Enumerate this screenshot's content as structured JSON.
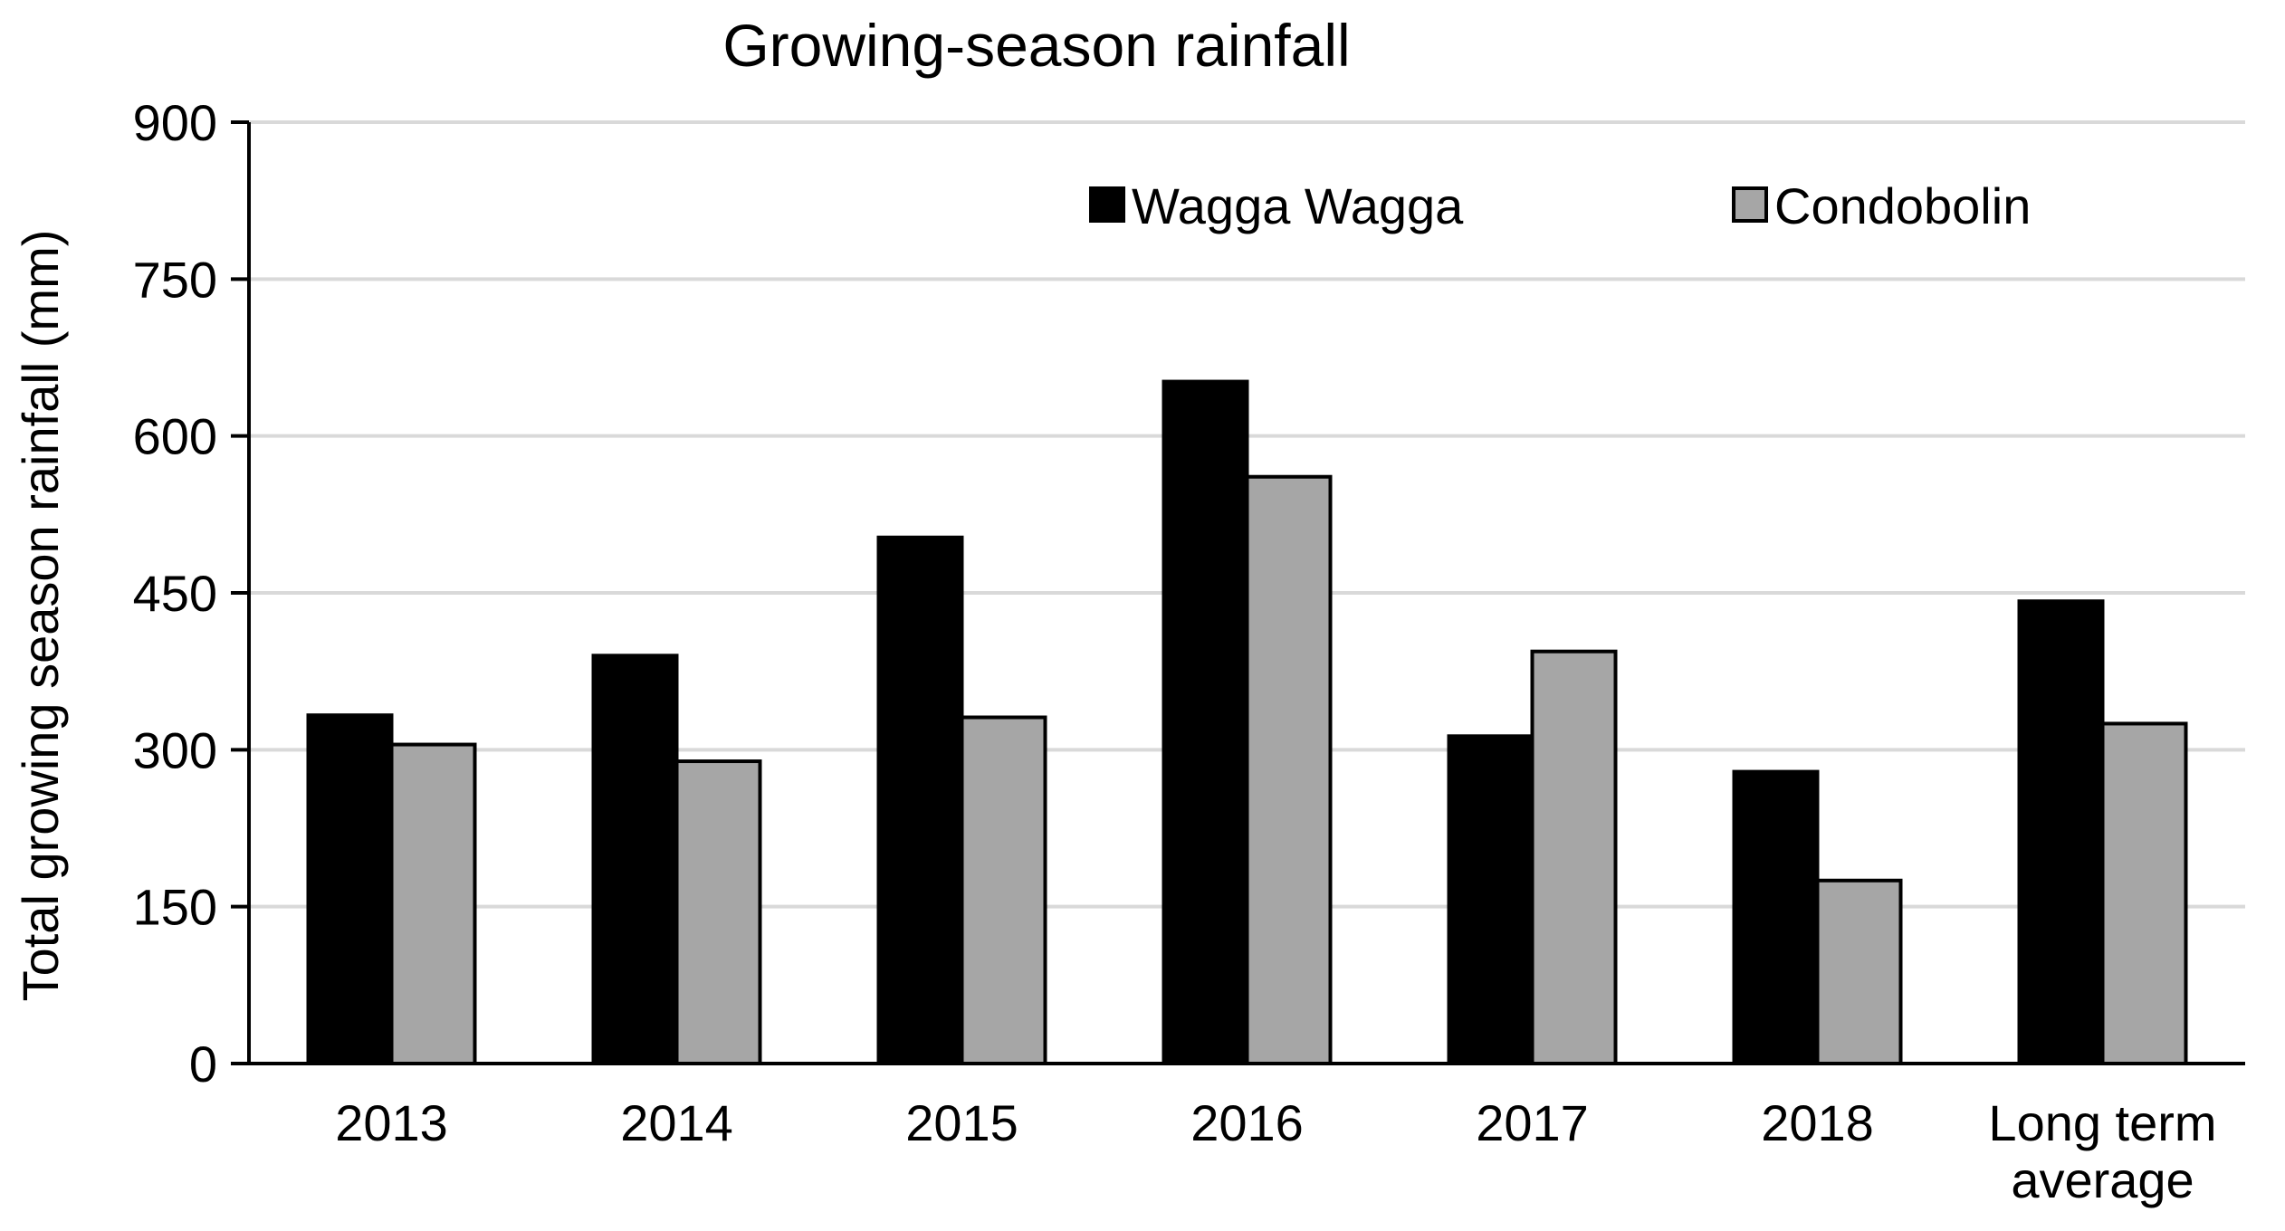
{
  "chart_data": {
    "type": "bar",
    "title": "Growing-season rainfall",
    "xlabel": "",
    "ylabel": "Total growing season rainfall (mm)",
    "ylim": [
      0,
      900
    ],
    "yticks": [
      0,
      150,
      300,
      450,
      600,
      750,
      900
    ],
    "grid": true,
    "legend_position": "top-right",
    "categories": [
      [
        "2013"
      ],
      [
        "2014"
      ],
      [
        "2015"
      ],
      [
        "2016"
      ],
      [
        "2017"
      ],
      [
        "2018"
      ],
      [
        "Long term",
        "average"
      ]
    ],
    "series": [
      {
        "name": "Wagga Wagga",
        "color": "#000000",
        "values": [
          333,
          390,
          503,
          652,
          313,
          279,
          442
        ]
      },
      {
        "name": "Condobolin",
        "color": "#a6a6a6",
        "values": [
          305,
          289,
          331,
          561,
          394,
          175,
          325
        ]
      }
    ]
  }
}
